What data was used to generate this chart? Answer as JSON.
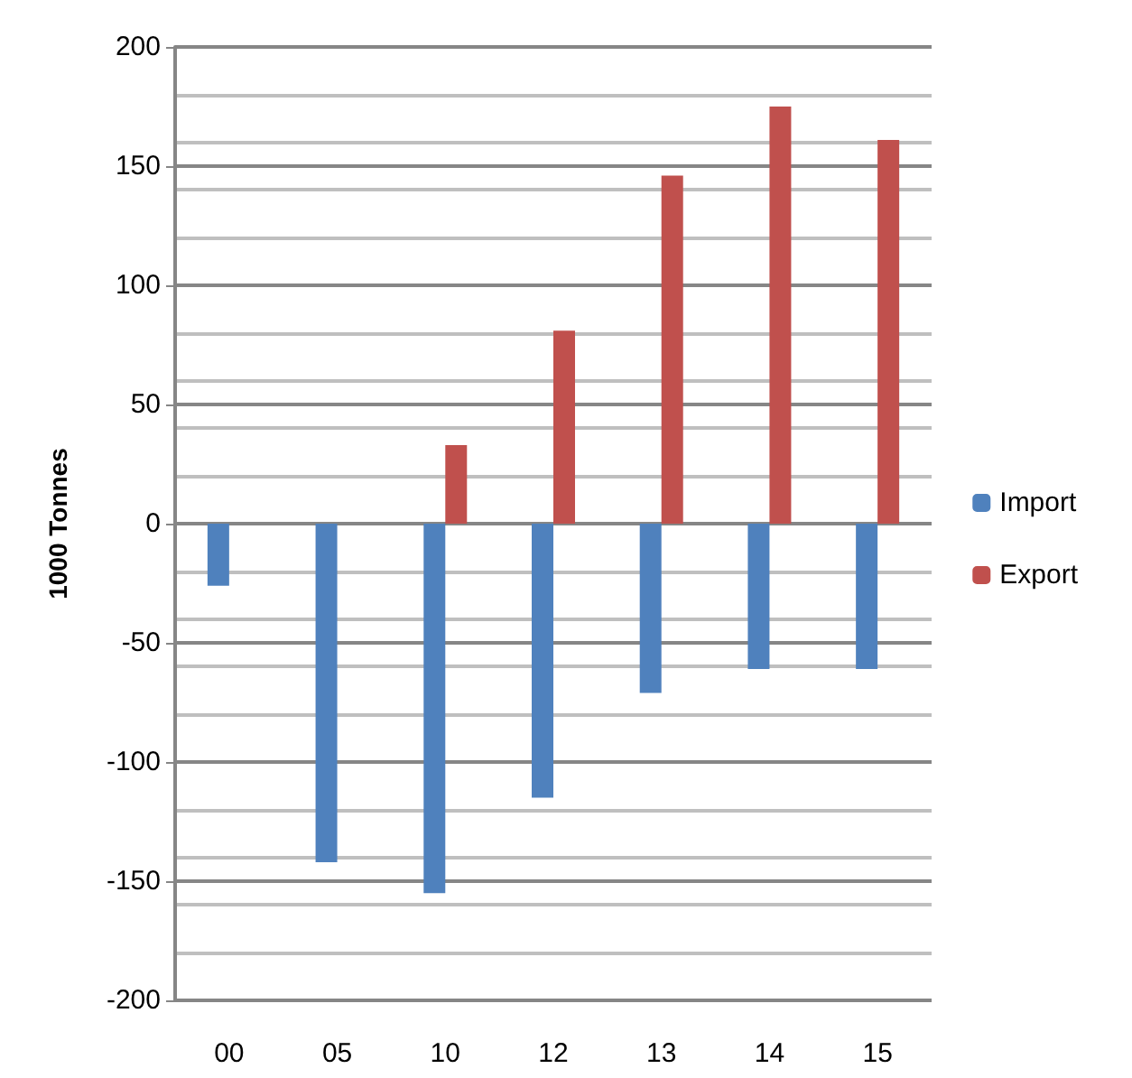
{
  "chart_data": {
    "type": "bar",
    "ylabel": "1000 Tonnes",
    "categories": [
      "00",
      "05",
      "10",
      "12",
      "13",
      "14",
      "15"
    ],
    "series": [
      {
        "name": "Import",
        "color": "#4f81bd",
        "values": [
          -26,
          -142,
          -155,
          -115,
          -71,
          -61,
          -61
        ]
      },
      {
        "name": "Export",
        "color": "#c0504d",
        "values": [
          null,
          null,
          33,
          81,
          146,
          175,
          161
        ]
      }
    ],
    "ylim": [
      -200,
      200
    ],
    "yticks": [
      -200,
      -150,
      -100,
      -50,
      0,
      50,
      100,
      150,
      200
    ],
    "grid": "y",
    "legend": "right"
  }
}
